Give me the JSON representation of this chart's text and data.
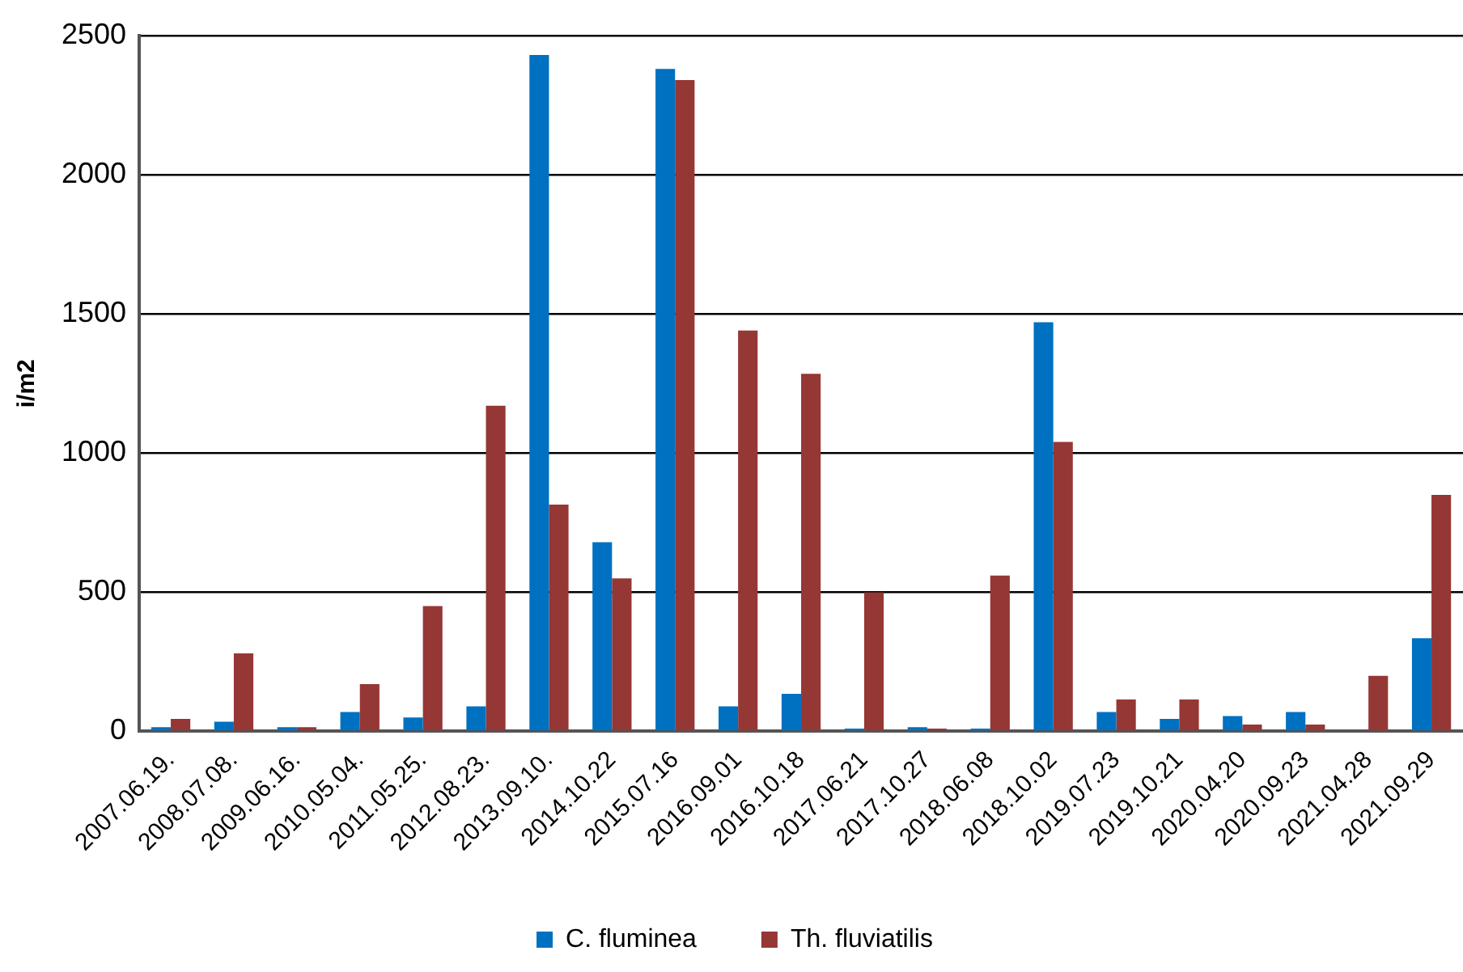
{
  "chart_data": {
    "type": "bar",
    "ylabel": "i/m2",
    "categories": [
      "2007.06.19.",
      "2008.07.08.",
      "2009.06.16.",
      "2010.05.04.",
      "2011.05.25.",
      "2012.08.23.",
      "2013.09.10.",
      "2014.10.22",
      "2015.07.16",
      "2016.09.01",
      "2016.10.18",
      "2017.06.21",
      "2017.10.27",
      "2018.06.08",
      "2018.10.02",
      "2019.07.23",
      "2019.10.21",
      "2020.04.20",
      "2020.09.23",
      "2021.04.28",
      "2021.09.29"
    ],
    "series": [
      {
        "name": "C. fluminea",
        "color": "#0070c0",
        "values": [
          15,
          35,
          15,
          70,
          50,
          90,
          2430,
          680,
          2380,
          90,
          135,
          10,
          15,
          10,
          1470,
          70,
          45,
          55,
          70,
          0,
          335
        ]
      },
      {
        "name": "Th. fluviatilis",
        "color": "#953735",
        "values": [
          45,
          280,
          15,
          170,
          450,
          1170,
          815,
          550,
          2340,
          1440,
          1285,
          500,
          10,
          560,
          1040,
          115,
          115,
          25,
          25,
          200,
          850
        ]
      }
    ],
    "ylim": [
      0,
      2500
    ],
    "yticks": [
      0,
      500,
      1000,
      1500,
      2000,
      2500
    ],
    "grid": "y",
    "legend": "bottom"
  }
}
